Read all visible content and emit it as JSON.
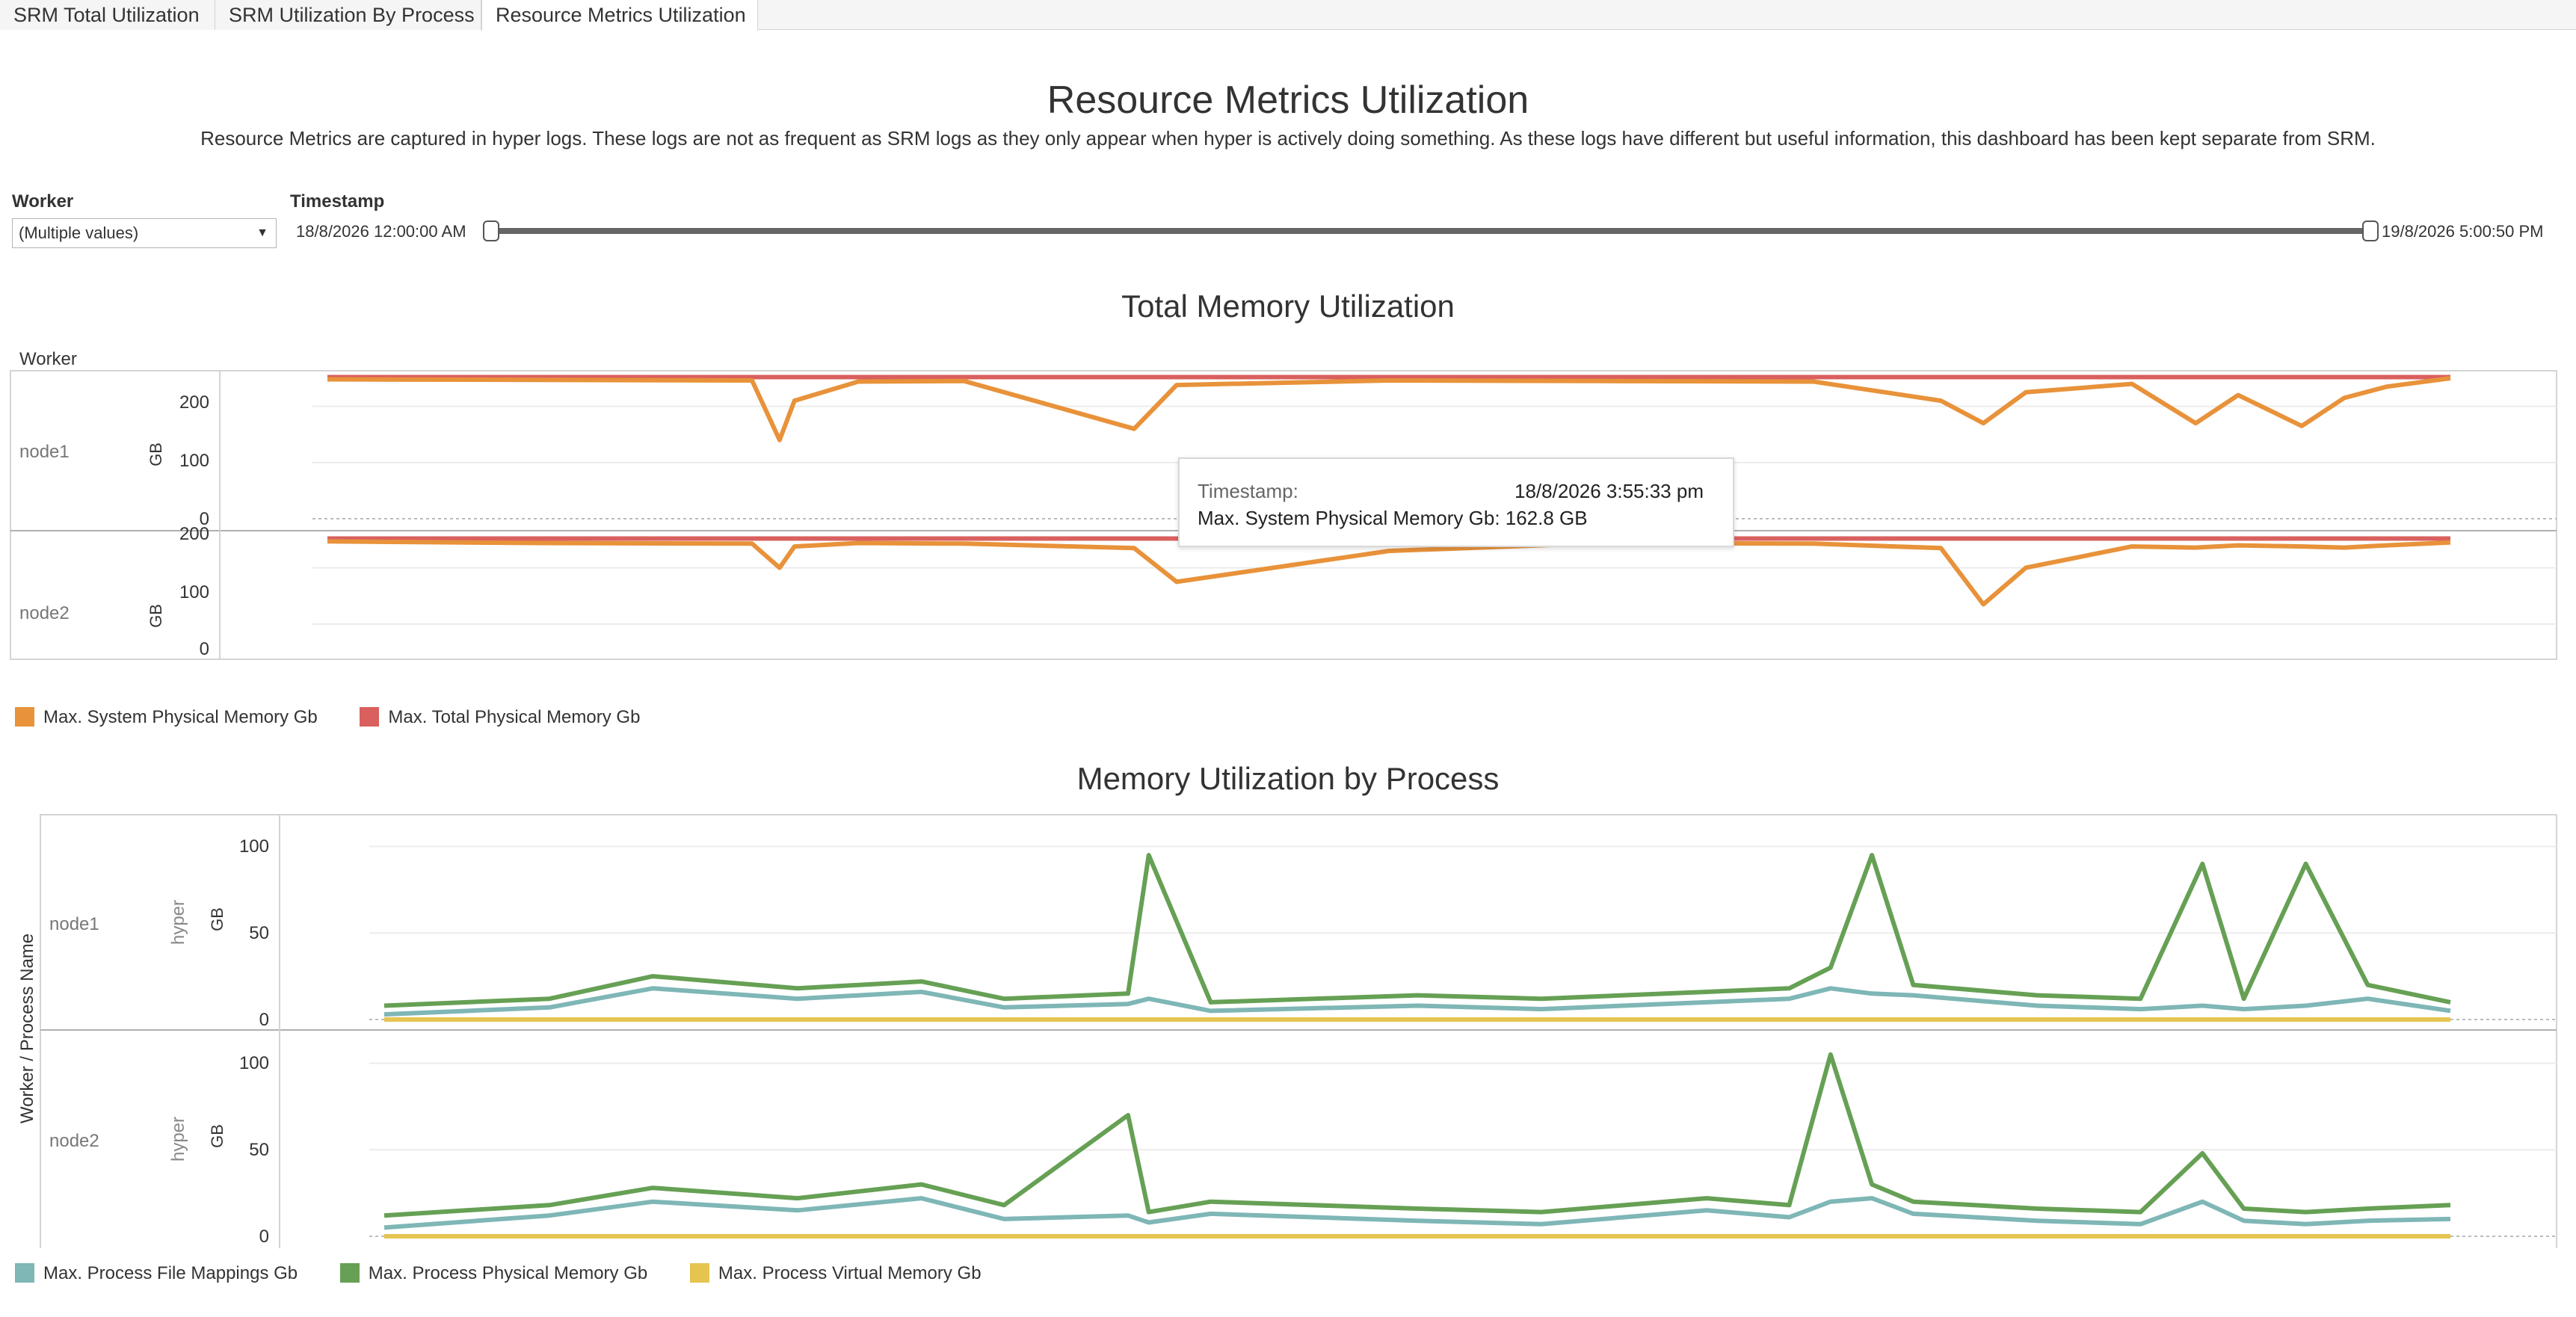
{
  "tabs": [
    {
      "label": "SRM Total Utilization"
    },
    {
      "label": "SRM Utilization By Process"
    },
    {
      "label": "Resource Metrics Utilization"
    }
  ],
  "page": {
    "title": "Resource Metrics Utilization",
    "description": "Resource Metrics are captured in hyper logs. These logs are not as frequent as SRM logs as they only appear when hyper is actively doing something. As these logs have different but useful information, this dashboard has been kept separate from SRM."
  },
  "filters": {
    "worker": {
      "label": "Worker",
      "value": "(Multiple values)"
    },
    "timestamp": {
      "label": "Timestamp",
      "start": "18/8/2026 12:00:00 AM",
      "end": "19/8/2026 5:00:50 PM"
    }
  },
  "colors": {
    "system_memory": "#e8923a",
    "total_memory": "#d9605e",
    "file_mappings": "#7fb6b6",
    "physical_memory": "#66a054",
    "virtual_memory": "#e6c450"
  },
  "total_memory": {
    "title": "Total Memory Utilization",
    "worker_header": "Worker",
    "axis_label": "GB",
    "ticks": [
      "0",
      "100",
      "200"
    ],
    "rows": [
      "node1",
      "node2"
    ],
    "legend": [
      "Max. System Physical Memory Gb",
      "Max. Total Physical Memory Gb"
    ]
  },
  "tooltip": {
    "timestamp_label": "Timestamp:",
    "timestamp_value": "18/8/2026 3:55:33 pm",
    "line2": "Max. System Physical Memory Gb: 162.8 GB"
  },
  "process_memory": {
    "title": "Memory Utilization by Process",
    "worker_header": "Worker / Process Name",
    "process": "hyper",
    "axis_label": "GB",
    "ticks": [
      "0",
      "50",
      "100"
    ],
    "rows": [
      "node1",
      "node2"
    ],
    "legend": [
      "Max. Process File Mappings Gb",
      "Max. Process Physical Memory Gb",
      "Max. Process Virtual Memory Gb"
    ]
  },
  "chart_data": [
    {
      "type": "line",
      "title": "Total Memory Utilization",
      "ylabel": "GB",
      "ylim": [
        0,
        270
      ],
      "x_range": [
        "18/8/2026 12:00:00 AM",
        "19/8/2026 5:00:50 PM"
      ],
      "x": [
        0.0,
        0.1,
        0.2,
        0.213,
        0.22,
        0.25,
        0.3,
        0.38,
        0.4,
        0.5,
        0.6,
        0.7,
        0.76,
        0.78,
        0.8,
        0.85,
        0.88,
        0.9,
        0.93,
        0.95,
        0.97,
        1.0
      ],
      "series": [
        {
          "name": "Max. System Physical Memory Gb",
          "panel": "node1",
          "values": [
            248,
            247,
            246,
            140,
            210,
            244,
            245,
            160,
            238,
            246,
            245,
            244,
            210,
            170,
            225,
            240,
            170,
            220,
            165,
            215,
            235,
            250
          ]
        },
        {
          "name": "Max. Total Physical Memory Gb",
          "panel": "node1",
          "values": [
            252,
            252,
            252,
            252,
            252,
            252,
            252,
            252,
            252,
            252,
            252,
            252,
            252,
            252,
            252,
            252,
            252,
            252,
            252,
            252,
            252,
            252
          ]
        },
        {
          "name": "Max. System Physical Memory Gb",
          "panel": "node2",
          "values": [
            247,
            244,
            243,
            200,
            238,
            244,
            243,
            235,
            175,
            230,
            244,
            243,
            235,
            135,
            200,
            238,
            236,
            240,
            238,
            236,
            240,
            245
          ]
        },
        {
          "name": "Max. Total Physical Memory Gb",
          "panel": "node2",
          "values": [
            252,
            252,
            252,
            252,
            252,
            252,
            252,
            252,
            252,
            252,
            252,
            252,
            252,
            252,
            252,
            252,
            252,
            252,
            252,
            252,
            252,
            252
          ]
        }
      ]
    },
    {
      "type": "line",
      "title": "Memory Utilization by Process",
      "ylabel": "GB",
      "ylim": [
        0,
        108
      ],
      "x_range": [
        "18/8/2026 12:00:00 AM",
        "19/8/2026 5:00:50 PM"
      ],
      "x": [
        0.0,
        0.08,
        0.13,
        0.2,
        0.26,
        0.3,
        0.36,
        0.37,
        0.4,
        0.5,
        0.56,
        0.64,
        0.68,
        0.7,
        0.72,
        0.74,
        0.8,
        0.85,
        0.88,
        0.9,
        0.93,
        0.96,
        1.0
      ],
      "series": [
        {
          "name": "Max. Process Physical Memory Gb",
          "panel": "node1",
          "values": [
            8,
            12,
            25,
            18,
            22,
            12,
            15,
            95,
            10,
            14,
            12,
            16,
            18,
            30,
            95,
            20,
            14,
            12,
            90,
            12,
            90,
            20,
            10
          ]
        },
        {
          "name": "Max. Process File Mappings Gb",
          "panel": "node1",
          "values": [
            3,
            7,
            18,
            12,
            16,
            7,
            9,
            12,
            5,
            8,
            6,
            10,
            12,
            18,
            15,
            14,
            8,
            6,
            8,
            6,
            8,
            12,
            5
          ]
        },
        {
          "name": "Max. Process Virtual Memory Gb",
          "panel": "node1",
          "values": [
            0,
            0,
            0,
            0,
            0,
            0,
            0,
            0,
            0,
            0,
            0,
            0,
            0,
            0,
            0,
            0,
            0,
            0,
            0,
            0,
            0,
            0,
            0
          ]
        },
        {
          "name": "Max. Process Physical Memory Gb",
          "panel": "node2",
          "values": [
            12,
            18,
            28,
            22,
            30,
            18,
            70,
            14,
            20,
            16,
            14,
            22,
            18,
            105,
            30,
            20,
            16,
            14,
            48,
            16,
            14,
            16,
            18
          ]
        },
        {
          "name": "Max. Process File Mappings Gb",
          "panel": "node2",
          "values": [
            5,
            12,
            20,
            15,
            22,
            10,
            12,
            8,
            13,
            9,
            7,
            15,
            11,
            20,
            22,
            13,
            9,
            7,
            20,
            9,
            7,
            9,
            10
          ]
        },
        {
          "name": "Max. Process Virtual Memory Gb",
          "panel": "node2",
          "values": [
            0,
            0,
            0,
            0,
            0,
            0,
            0,
            0,
            0,
            0,
            0,
            0,
            0,
            0,
            0,
            0,
            0,
            0,
            0,
            0,
            0,
            0,
            0
          ]
        }
      ]
    }
  ]
}
